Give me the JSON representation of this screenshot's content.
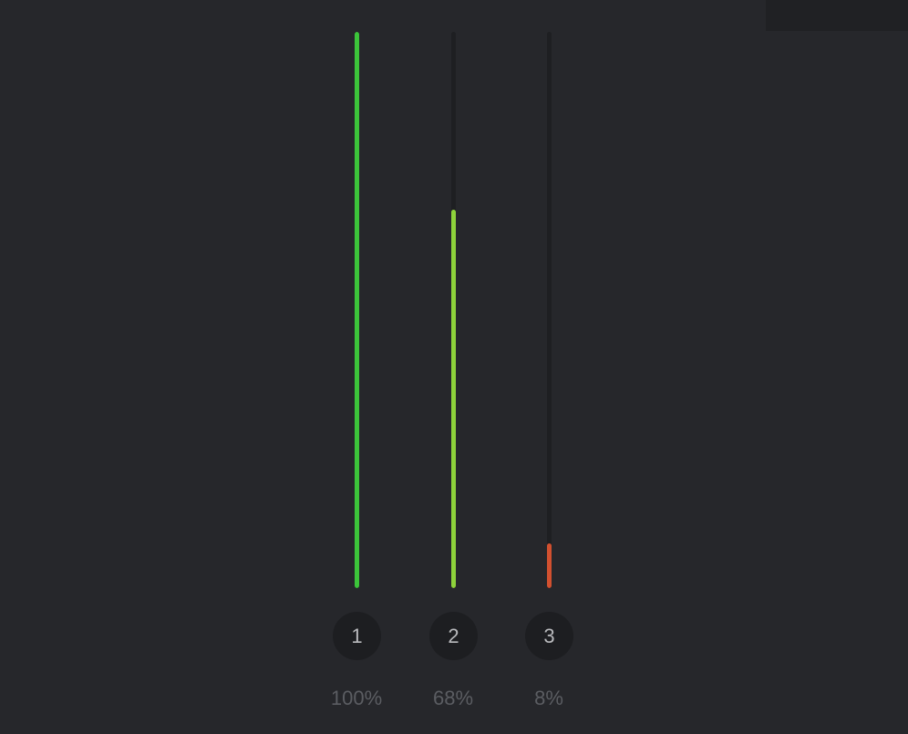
{
  "meters": [
    {
      "label": "1",
      "percent_text": "100%",
      "value": 1.0,
      "color": "#3cc43a"
    },
    {
      "label": "2",
      "percent_text": "68%",
      "value": 0.68,
      "color": "#8ed23b"
    },
    {
      "label": "3",
      "percent_text": "8%",
      "value": 0.08,
      "color": "#d2502f"
    }
  ]
}
